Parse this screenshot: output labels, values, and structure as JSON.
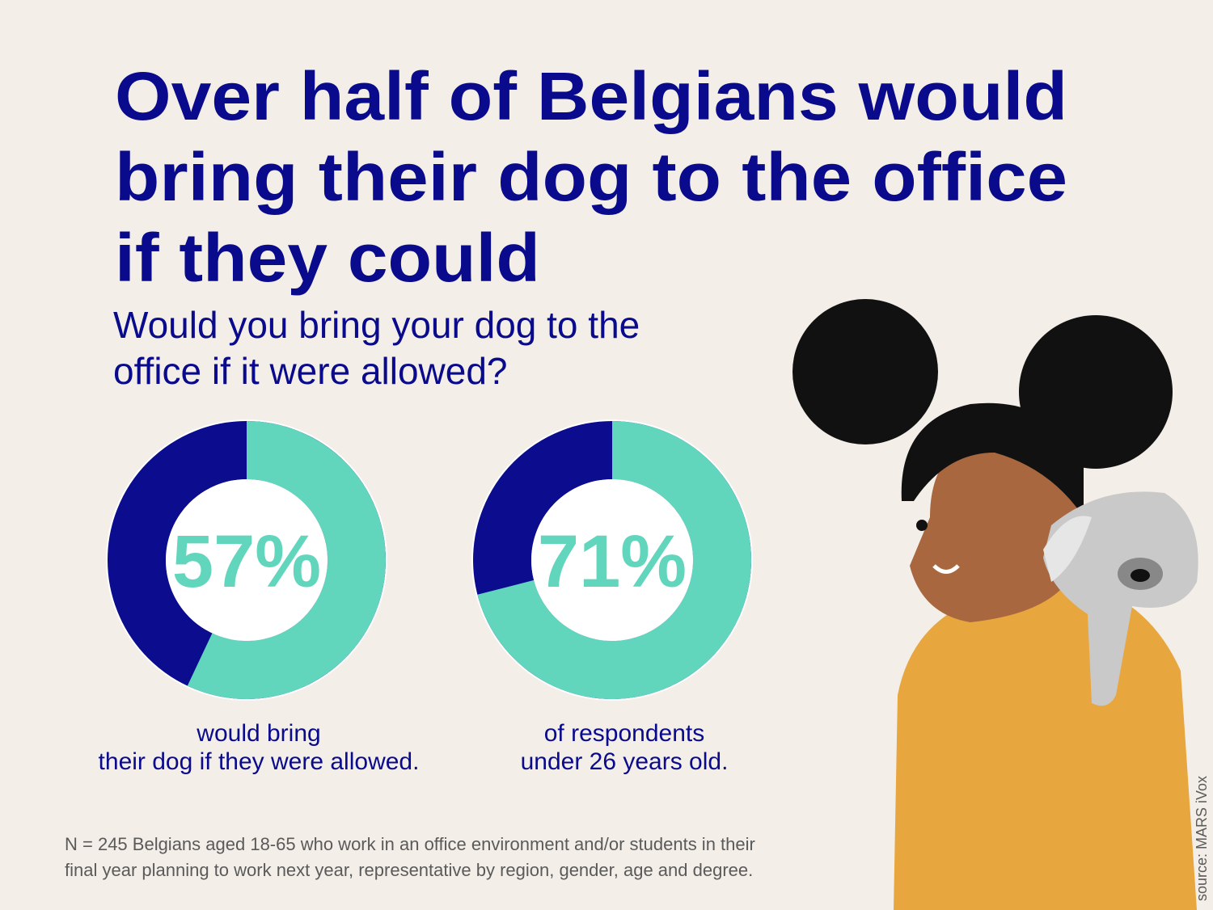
{
  "title_lines": [
    "Over half of Belgians would",
    "bring their dog to the office",
    "if they could"
  ],
  "subtitle_lines": [
    "Would you bring your dog to the",
    "office if it were allowed?"
  ],
  "chart_data": [
    {
      "type": "donut",
      "values": [
        57
      ],
      "value_labels": [
        "57%"
      ],
      "ylim": [
        0,
        100
      ],
      "color": "#62d5bd",
      "rest_color": "#0c0c8e",
      "caption_lines": [
        "would bring",
        "their dog if they were allowed."
      ]
    },
    {
      "type": "donut",
      "values": [
        71
      ],
      "value_labels": [
        "71%"
      ],
      "ylim": [
        0,
        100
      ],
      "color": "#62d5bd",
      "rest_color": "#0c0c8e",
      "caption_lines": [
        "of respondents",
        "under 26 years old."
      ]
    }
  ],
  "footnote_lines": [
    "N = 245 Belgians aged 18-65 who work in an office environment and/or students in their",
    "final year planning to work next year, representative by region, gender, age and degree."
  ],
  "source": "source: MARS iVox"
}
